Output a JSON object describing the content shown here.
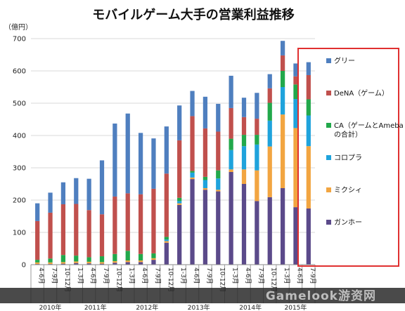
{
  "chart_data": {
    "type": "bar",
    "stacked": true,
    "title": "モバイルゲーム大手の営業利益推移",
    "unit_label": "（億円）",
    "ylim": [
      0,
      700
    ],
    "yticks": [
      0,
      100,
      200,
      300,
      400,
      500,
      600,
      700
    ],
    "grid": true,
    "legend_position": "right",
    "categories": [
      "4-6月",
      "7-9月",
      "10-12月",
      "1-3月",
      "4-6月",
      "7-9月",
      "10-12月",
      "1-3月",
      "4-6月",
      "7-9月",
      "10-12月",
      "1-3月",
      "4-6月",
      "7-9月",
      "10-12月",
      "1-3月",
      "4-6月",
      "7-9月",
      "10-12月",
      "1-3月",
      "4-6月",
      "7-9月"
    ],
    "year_labels": [
      {
        "label": "2010年",
        "start": 0,
        "end": 2
      },
      {
        "label": "2011年",
        "start": 3,
        "end": 6
      },
      {
        "label": "2012年",
        "start": 7,
        "end": 10
      },
      {
        "label": "2013年",
        "start": 11,
        "end": 14
      },
      {
        "label": "2014年",
        "start": 15,
        "end": 18
      },
      {
        "label": "2015年",
        "start": 19,
        "end": 21
      }
    ],
    "series": [
      {
        "name": "ガンホー",
        "color": "#5b4a8a",
        "values": [
          2,
          2,
          3,
          5,
          4,
          3,
          6,
          8,
          8,
          15,
          68,
          185,
          265,
          232,
          227,
          287,
          250,
          197,
          209,
          237,
          178,
          174
        ]
      },
      {
        "name": "ミクシィ",
        "color": "#f2a541",
        "values": [
          5,
          5,
          5,
          5,
          5,
          5,
          5,
          5,
          5,
          5,
          5,
          5,
          5,
          5,
          5,
          8,
          45,
          95,
          157,
          228,
          245,
          193
        ]
      },
      {
        "name": "コロプラ",
        "color": "#1fa3dc",
        "values": [
          0,
          0,
          0,
          0,
          0,
          0,
          0,
          0,
          0,
          0,
          5,
          7,
          15,
          25,
          35,
          60,
          72,
          80,
          80,
          85,
          90,
          95
        ]
      },
      {
        "name": "CA（ゲームとAmebaの合計）",
        "color": "#22a84b",
        "values": [
          8,
          12,
          22,
          18,
          14,
          18,
          22,
          30,
          20,
          15,
          8,
          10,
          5,
          10,
          25,
          35,
          35,
          30,
          55,
          50,
          45,
          50
        ]
      },
      {
        "name": "DeNA（ゲーム）",
        "color": "#c0504d",
        "values": [
          120,
          142,
          157,
          160,
          146,
          130,
          178,
          178,
          185,
          200,
          196,
          178,
          170,
          150,
          120,
          95,
          55,
          50,
          45,
          48,
          25,
          75
        ]
      },
      {
        "name": "グリー",
        "color": "#4f7fbf",
        "values": [
          55,
          62,
          68,
          80,
          97,
          167,
          226,
          247,
          190,
          156,
          146,
          108,
          78,
          98,
          86,
          100,
          60,
          80,
          44,
          45,
          40,
          40
        ]
      }
    ],
    "legend_order": [
      "グリー",
      "DeNA（ゲーム）",
      "CA（ゲームとAmebaの合計）",
      "コロプラ",
      "ミクシィ",
      "ガンホー"
    ]
  },
  "legend_text": [
    [
      "グリー"
    ],
    [
      "DeNA（ゲーム）"
    ],
    [
      "CA（ゲームとAmeba",
      "の合計）"
    ],
    [
      "コロプラ"
    ],
    [
      "ミクシィ"
    ],
    [
      "ガンホー"
    ]
  ],
  "watermark": "Gamelook游资网",
  "colors": {
    "legend_border": "#e03030",
    "grid": "#d9d9d9",
    "axis": "#888888"
  }
}
